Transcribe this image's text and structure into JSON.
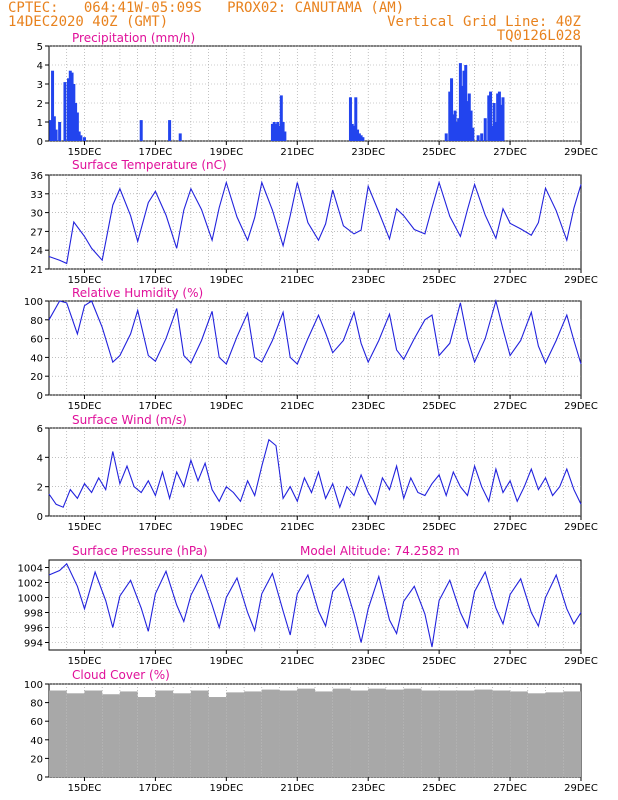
{
  "header": {
    "line1_left": "CPTEC:   064:41W-05:09S   PROX02: CANUTAMA (AM)",
    "line2_left": "14DEC2020 40Z (GMT)",
    "line2_right": "Vertical Grid Line: 40Z",
    "line3_right": "TQ0126L028"
  },
  "colors": {
    "header": "#e8821e",
    "title": "#e0109a",
    "line": "#2222dd",
    "bar": "#2244ee",
    "cloud": "#a8a8a8",
    "grid": "#9a9a9a"
  },
  "chart_data": [
    {
      "type": "bar",
      "title": "Precipitation (mm/h)",
      "ylim": [
        0,
        5
      ],
      "yticks": [
        0,
        1,
        2,
        3,
        4,
        5
      ],
      "xlim": [
        14.0,
        29.0
      ],
      "xtick_labels": [
        "15DEC",
        "17DEC",
        "19DEC",
        "21DEC",
        "23DEC",
        "25DEC",
        "27DEC",
        "29DEC"
      ],
      "x": [
        14.05,
        14.1,
        14.15,
        14.2,
        14.3,
        14.45,
        14.55,
        14.6,
        14.65,
        14.7,
        14.75,
        14.8,
        14.85,
        14.9,
        15.0,
        16.6,
        17.4,
        17.7,
        20.3,
        20.35,
        20.4,
        20.45,
        20.5,
        20.55,
        20.6,
        20.65,
        22.5,
        22.55,
        22.6,
        22.65,
        22.7,
        22.75,
        22.8,
        22.85,
        25.2,
        25.3,
        25.35,
        25.4,
        25.45,
        25.5,
        25.55,
        25.6,
        25.65,
        25.7,
        25.75,
        25.8,
        25.85,
        25.9,
        25.95,
        26.1,
        26.2,
        26.3,
        26.4,
        26.45,
        26.5,
        26.55,
        26.6,
        26.65,
        26.7,
        26.75,
        26.8
      ],
      "values": [
        1.1,
        3.7,
        1.3,
        0.6,
        1.0,
        3.1,
        3.3,
        3.7,
        3.6,
        3.0,
        2.0,
        1.5,
        0.5,
        0.3,
        0.2,
        1.1,
        1.1,
        0.4,
        0.9,
        1.0,
        0.9,
        1.0,
        0.8,
        2.4,
        1.0,
        0.5,
        2.3,
        0.9,
        0.8,
        2.3,
        0.6,
        0.4,
        0.3,
        0.2,
        0.4,
        2.6,
        3.3,
        1.4,
        1.6,
        1.0,
        1.2,
        4.1,
        2.9,
        3.7,
        4.0,
        2.1,
        2.5,
        1.6,
        0.7,
        0.3,
        0.4,
        1.2,
        2.4,
        2.6,
        0.8,
        2.0,
        1.0,
        2.5,
        2.6,
        1.9,
        2.3
      ]
    },
    {
      "type": "line",
      "title": "Surface Temperature (nC)",
      "ylim": [
        21,
        36
      ],
      "yticks": [
        21,
        24,
        27,
        30,
        33,
        36
      ],
      "xlim": [
        14.0,
        29.0
      ],
      "xtick_labels": [
        "15DEC",
        "17DEC",
        "19DEC",
        "21DEC",
        "23DEC",
        "25DEC",
        "27DEC",
        "29DEC"
      ],
      "x": [
        14.0,
        14.3,
        14.5,
        14.7,
        15.0,
        15.2,
        15.5,
        15.8,
        16.0,
        16.3,
        16.5,
        16.8,
        17.0,
        17.3,
        17.6,
        17.8,
        18.0,
        18.3,
        18.6,
        18.8,
        19.0,
        19.3,
        19.6,
        19.8,
        20.0,
        20.3,
        20.6,
        20.8,
        21.0,
        21.3,
        21.6,
        21.8,
        22.0,
        22.3,
        22.6,
        22.8,
        23.0,
        23.3,
        23.6,
        23.8,
        24.0,
        24.3,
        24.6,
        24.8,
        25.0,
        25.3,
        25.6,
        25.8,
        26.0,
        26.3,
        26.6,
        26.8,
        27.0,
        27.3,
        27.6,
        27.8,
        28.0,
        28.3,
        28.6,
        28.8,
        29.0
      ],
      "values": [
        23,
        22.4,
        21.9,
        28.5,
        26.2,
        24.3,
        22.4,
        31.2,
        33.8,
        29.5,
        25.4,
        31.6,
        33.4,
        29.6,
        24.3,
        30.4,
        33.8,
        30.5,
        25.6,
        30.8,
        34.8,
        29.3,
        25.6,
        29.2,
        34.8,
        30.4,
        24.7,
        29.5,
        34.8,
        28.4,
        25.6,
        28.2,
        33.6,
        27.9,
        26.6,
        27.2,
        34.2,
        30.1,
        25.8,
        30.6,
        29.5,
        27.3,
        26.6,
        30.8,
        34.8,
        29.4,
        26.2,
        30.5,
        34.5,
        29.6,
        25.9,
        30.6,
        28.3,
        27.4,
        26.4,
        28.4,
        33.9,
        30.3,
        25.6,
        30.7,
        34.5
      ]
    },
    {
      "type": "line",
      "title": "Relative Humidity (%)",
      "ylim": [
        0,
        100
      ],
      "yticks": [
        0,
        20,
        40,
        60,
        80,
        100
      ],
      "xlim": [
        14.0,
        29.0
      ],
      "xtick_labels": [
        "15DEC",
        "17DEC",
        "19DEC",
        "21DEC",
        "23DEC",
        "25DEC",
        "27DEC",
        "29DEC"
      ],
      "x": [
        14.0,
        14.3,
        14.5,
        14.8,
        15.0,
        15.2,
        15.5,
        15.8,
        16.0,
        16.3,
        16.5,
        16.8,
        17.0,
        17.3,
        17.6,
        17.8,
        18.0,
        18.3,
        18.6,
        18.8,
        19.0,
        19.3,
        19.6,
        19.8,
        20.0,
        20.3,
        20.6,
        20.8,
        21.0,
        21.3,
        21.6,
        21.8,
        22.0,
        22.3,
        22.6,
        22.8,
        23.0,
        23.3,
        23.6,
        23.8,
        24.0,
        24.3,
        24.6,
        24.8,
        25.0,
        25.3,
        25.6,
        25.8,
        26.0,
        26.3,
        26.6,
        26.8,
        27.0,
        27.3,
        27.6,
        27.8,
        28.0,
        28.3,
        28.6,
        28.8,
        29.0
      ],
      "values": [
        80,
        100,
        98,
        65,
        95,
        100,
        72,
        35,
        42,
        65,
        90,
        42,
        36,
        60,
        92,
        42,
        34,
        58,
        89,
        40,
        33,
        62,
        87,
        40,
        35,
        58,
        88,
        40,
        33,
        60,
        85,
        66,
        45,
        58,
        88,
        55,
        35,
        58,
        86,
        48,
        38,
        60,
        80,
        85,
        42,
        55,
        98,
        60,
        35,
        60,
        100,
        70,
        42,
        58,
        88,
        52,
        34,
        58,
        85,
        58,
        33
      ]
    },
    {
      "type": "line",
      "title": "Surface Wind (m/s)",
      "ylim": [
        0,
        6
      ],
      "yticks": [
        0,
        2,
        4,
        6
      ],
      "xlim": [
        14.0,
        29.0
      ],
      "xtick_labels": [
        "15DEC",
        "17DEC",
        "19DEC",
        "21DEC",
        "23DEC",
        "25DEC",
        "27DEC",
        "29DEC"
      ],
      "x": [
        14.0,
        14.2,
        14.4,
        14.6,
        14.8,
        15.0,
        15.2,
        15.4,
        15.6,
        15.8,
        16.0,
        16.2,
        16.4,
        16.6,
        16.8,
        17.0,
        17.2,
        17.4,
        17.6,
        17.8,
        18.0,
        18.2,
        18.4,
        18.6,
        18.8,
        19.0,
        19.2,
        19.4,
        19.6,
        19.8,
        20.0,
        20.2,
        20.4,
        20.6,
        20.8,
        21.0,
        21.2,
        21.4,
        21.6,
        21.8,
        22.0,
        22.2,
        22.4,
        22.6,
        22.8,
        23.0,
        23.2,
        23.4,
        23.6,
        23.8,
        24.0,
        24.2,
        24.4,
        24.6,
        24.8,
        25.0,
        25.2,
        25.4,
        25.6,
        25.8,
        26.0,
        26.2,
        26.4,
        26.6,
        26.8,
        27.0,
        27.2,
        27.4,
        27.6,
        27.8,
        28.0,
        28.2,
        28.4,
        28.6,
        28.8,
        29.0
      ],
      "values": [
        1.5,
        0.8,
        0.6,
        1.8,
        1.2,
        2.2,
        1.6,
        2.6,
        1.8,
        4.4,
        2.2,
        3.4,
        2.0,
        1.6,
        2.4,
        1.4,
        3.0,
        1.2,
        3.0,
        2.0,
        3.8,
        2.4,
        3.6,
        1.8,
        1.0,
        2.0,
        1.6,
        1.0,
        2.4,
        1.4,
        3.4,
        5.2,
        4.8,
        1.2,
        2.0,
        1.0,
        2.6,
        1.6,
        3.0,
        1.2,
        2.2,
        0.6,
        2.0,
        1.4,
        2.8,
        1.6,
        0.8,
        2.6,
        1.8,
        3.4,
        1.2,
        2.6,
        1.6,
        1.4,
        2.2,
        2.8,
        1.4,
        3.0,
        2.0,
        1.4,
        3.4,
        2.0,
        1.0,
        3.2,
        1.6,
        2.4,
        1.0,
        2.0,
        3.2,
        1.8,
        2.6,
        1.4,
        2.0,
        3.2,
        1.8,
        0.8
      ]
    },
    {
      "type": "line",
      "title": "Surface Pressure (hPa)",
      "annotation": "Model Altitude: 74.2582 m",
      "ylim": [
        993,
        1005
      ],
      "yticks": [
        994,
        996,
        998,
        1000,
        1002,
        1004
      ],
      "xlim": [
        14.0,
        29.0
      ],
      "xtick_labels": [
        "15DEC",
        "17DEC",
        "19DEC",
        "21DEC",
        "23DEC",
        "25DEC",
        "27DEC",
        "29DEC"
      ],
      "x": [
        14.0,
        14.3,
        14.5,
        14.8,
        15.0,
        15.3,
        15.6,
        15.8,
        16.0,
        16.3,
        16.6,
        16.8,
        17.0,
        17.3,
        17.6,
        17.8,
        18.0,
        18.3,
        18.6,
        18.8,
        19.0,
        19.3,
        19.6,
        19.8,
        20.0,
        20.3,
        20.6,
        20.8,
        21.0,
        21.3,
        21.6,
        21.8,
        22.0,
        22.3,
        22.6,
        22.8,
        23.0,
        23.3,
        23.6,
        23.8,
        24.0,
        24.3,
        24.6,
        24.8,
        25.0,
        25.3,
        25.6,
        25.8,
        26.0,
        26.3,
        26.6,
        26.8,
        27.0,
        27.3,
        27.6,
        27.8,
        28.0,
        28.3,
        28.6,
        28.8,
        29.0
      ],
      "values": [
        1003,
        1003.6,
        1004.5,
        1001.5,
        998.5,
        1003.4,
        999.6,
        996.0,
        1000.2,
        1002.3,
        998.6,
        995.5,
        1000.5,
        1003.5,
        999.0,
        996.8,
        1000.3,
        1003.0,
        999.0,
        996.0,
        1000.0,
        1002.6,
        998.0,
        995.6,
        1000.5,
        1003.2,
        998.2,
        995.0,
        1000.5,
        1003.0,
        998.2,
        996.2,
        1000.8,
        1002.5,
        997.8,
        994.0,
        998.5,
        1002.8,
        997.0,
        995.2,
        999.5,
        1001.5,
        997.8,
        993.4,
        999.6,
        1002.3,
        998.0,
        996.0,
        1000.8,
        1003.4,
        998.6,
        996.5,
        1000.4,
        1002.5,
        998.0,
        996.2,
        1000.0,
        1003.0,
        998.5,
        996.5,
        998.0
      ]
    },
    {
      "type": "bar",
      "title": "Cloud Cover (%)",
      "ylim": [
        0,
        100
      ],
      "yticks": [
        0,
        20,
        40,
        60,
        80,
        100
      ],
      "xlim": [
        14.0,
        29.0
      ],
      "xtick_labels": [
        "15DEC",
        "17DEC",
        "19DEC",
        "21DEC",
        "23DEC",
        "25DEC",
        "27DEC",
        "29DEC"
      ],
      "x": [
        14.25,
        14.75,
        15.25,
        15.75,
        16.25,
        16.75,
        17.25,
        17.75,
        18.25,
        18.75,
        19.25,
        19.75,
        20.25,
        20.75,
        21.25,
        21.75,
        22.25,
        22.75,
        23.25,
        23.75,
        24.25,
        24.75,
        25.25,
        25.75,
        26.25,
        26.75,
        27.25,
        27.75,
        28.25,
        28.75
      ],
      "widths": 0.5,
      "values": [
        93,
        90,
        93,
        89,
        92,
        86,
        93,
        90,
        93,
        86,
        91,
        92,
        94,
        93,
        95,
        92,
        95,
        93,
        95,
        94,
        95,
        93,
        93,
        93,
        94,
        93,
        92,
        90,
        91,
        92
      ]
    }
  ]
}
